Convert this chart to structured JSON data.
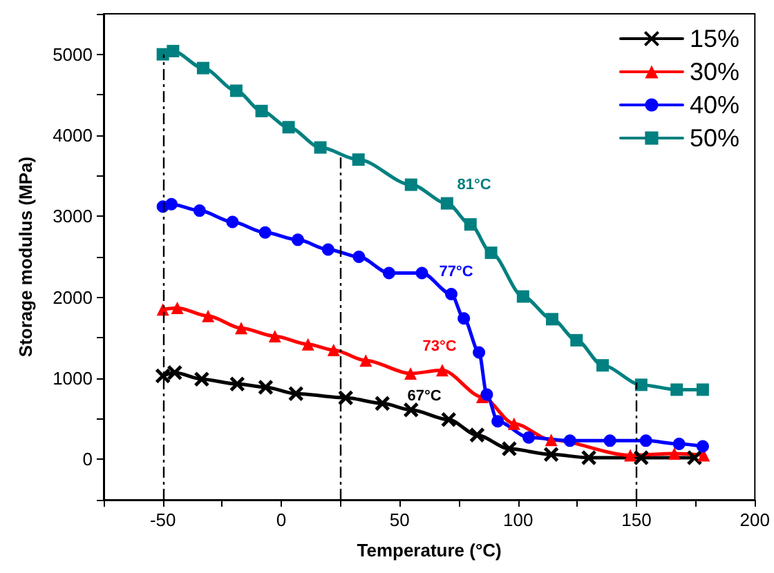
{
  "chart_data": {
    "type": "line",
    "xlabel": "Temperature (°C)",
    "ylabel": "Storage modulus (MPa)",
    "xlim": [
      -75,
      200
    ],
    "xticks": [
      {
        "value": -75,
        "label": null
      },
      -50,
      {
        "value": -25,
        "label": null
      },
      0,
      {
        "value": 25,
        "label": null
      },
      50,
      {
        "value": 75,
        "label": null
      },
      100,
      {
        "value": 125,
        "label": null
      },
      150,
      {
        "value": 175,
        "label": null
      },
      200
    ],
    "ylim": [
      -500,
      5500
    ],
    "yticks": [
      {
        "value": -500,
        "label": null
      },
      0,
      {
        "value": 500,
        "label": null
      },
      1000,
      {
        "value": 1500,
        "label": null
      },
      2000,
      {
        "value": 2500,
        "label": null
      },
      3000,
      {
        "value": 3500,
        "label": null
      },
      4000,
      {
        "value": 4500,
        "label": null
      },
      5000,
      {
        "value": 5500,
        "label": null
      }
    ],
    "grid": false,
    "legend": "top right",
    "line_style": "solid",
    "series": [
      {
        "name": "15%",
        "color": "#000000",
        "marker": "cross",
        "x": [
          -50,
          -45,
          -33.6,
          -18.6,
          -6.6,
          6.2,
          27.2,
          42.7,
          54.8,
          70.7,
          82.7,
          96.3,
          114,
          129.9,
          152,
          174.5
        ],
        "values": [
          1030,
          1070,
          990,
          930,
          890,
          810,
          760,
          690,
          610,
          490,
          300,
          130,
          60,
          20,
          20,
          20
        ]
      },
      {
        "name": "30%",
        "color": "#ff0000",
        "marker": "triangle",
        "x": [
          -50,
          -43.9,
          -30.9,
          -16.9,
          -2.7,
          11.3,
          22.1,
          35.7,
          54.6,
          68,
          84.9,
          98.3,
          114,
          147.4,
          166,
          178.4
        ],
        "values": [
          1850,
          1870,
          1770,
          1620,
          1520,
          1420,
          1350,
          1220,
          1060,
          1100,
          770,
          440,
          240,
          50,
          70,
          50
        ]
      },
      {
        "name": "40%",
        "color": "#0000ff",
        "marker": "circle",
        "x": [
          -50,
          -46.4,
          -34.5,
          -20.6,
          -6.8,
          7,
          19.8,
          32.8,
          45.5,
          59.4,
          71.8,
          77.1,
          83.5,
          86.8,
          91.4,
          104.5,
          121.9,
          138.8,
          154,
          168,
          178
        ],
        "values": [
          3120,
          3150,
          3070,
          2930,
          2800,
          2710,
          2590,
          2500,
          2300,
          2300,
          2040,
          1740,
          1320,
          800,
          470,
          270,
          230,
          230,
          230,
          190,
          160
        ]
      },
      {
        "name": "50%",
        "color": "#008080",
        "marker": "square",
        "x": [
          -50,
          -45.7,
          -33,
          -19,
          -8.3,
          3.1,
          16.5,
          32.6,
          54.8,
          70,
          79.9,
          88.6,
          102.1,
          114.4,
          124.7,
          135.7,
          152,
          167,
          178
        ],
        "values": [
          5000,
          5040,
          4830,
          4550,
          4300,
          4100,
          3850,
          3700,
          3390,
          3160,
          2900,
          2550,
          2010,
          1730,
          1470,
          1160,
          920,
          860,
          860
        ]
      }
    ],
    "ref_lines": [
      {
        "axis": "x",
        "value": -50,
        "line_style": "dashed",
        "color": "#000000"
      },
      {
        "axis": "x",
        "value": 25,
        "line_style": "dashed",
        "color": "#000000"
      },
      {
        "axis": "x",
        "value": 150,
        "line_style": "dashed",
        "color": "#000000"
      }
    ],
    "annotations": [
      "67°C",
      "73°C",
      "77°C",
      "81°C"
    ]
  }
}
